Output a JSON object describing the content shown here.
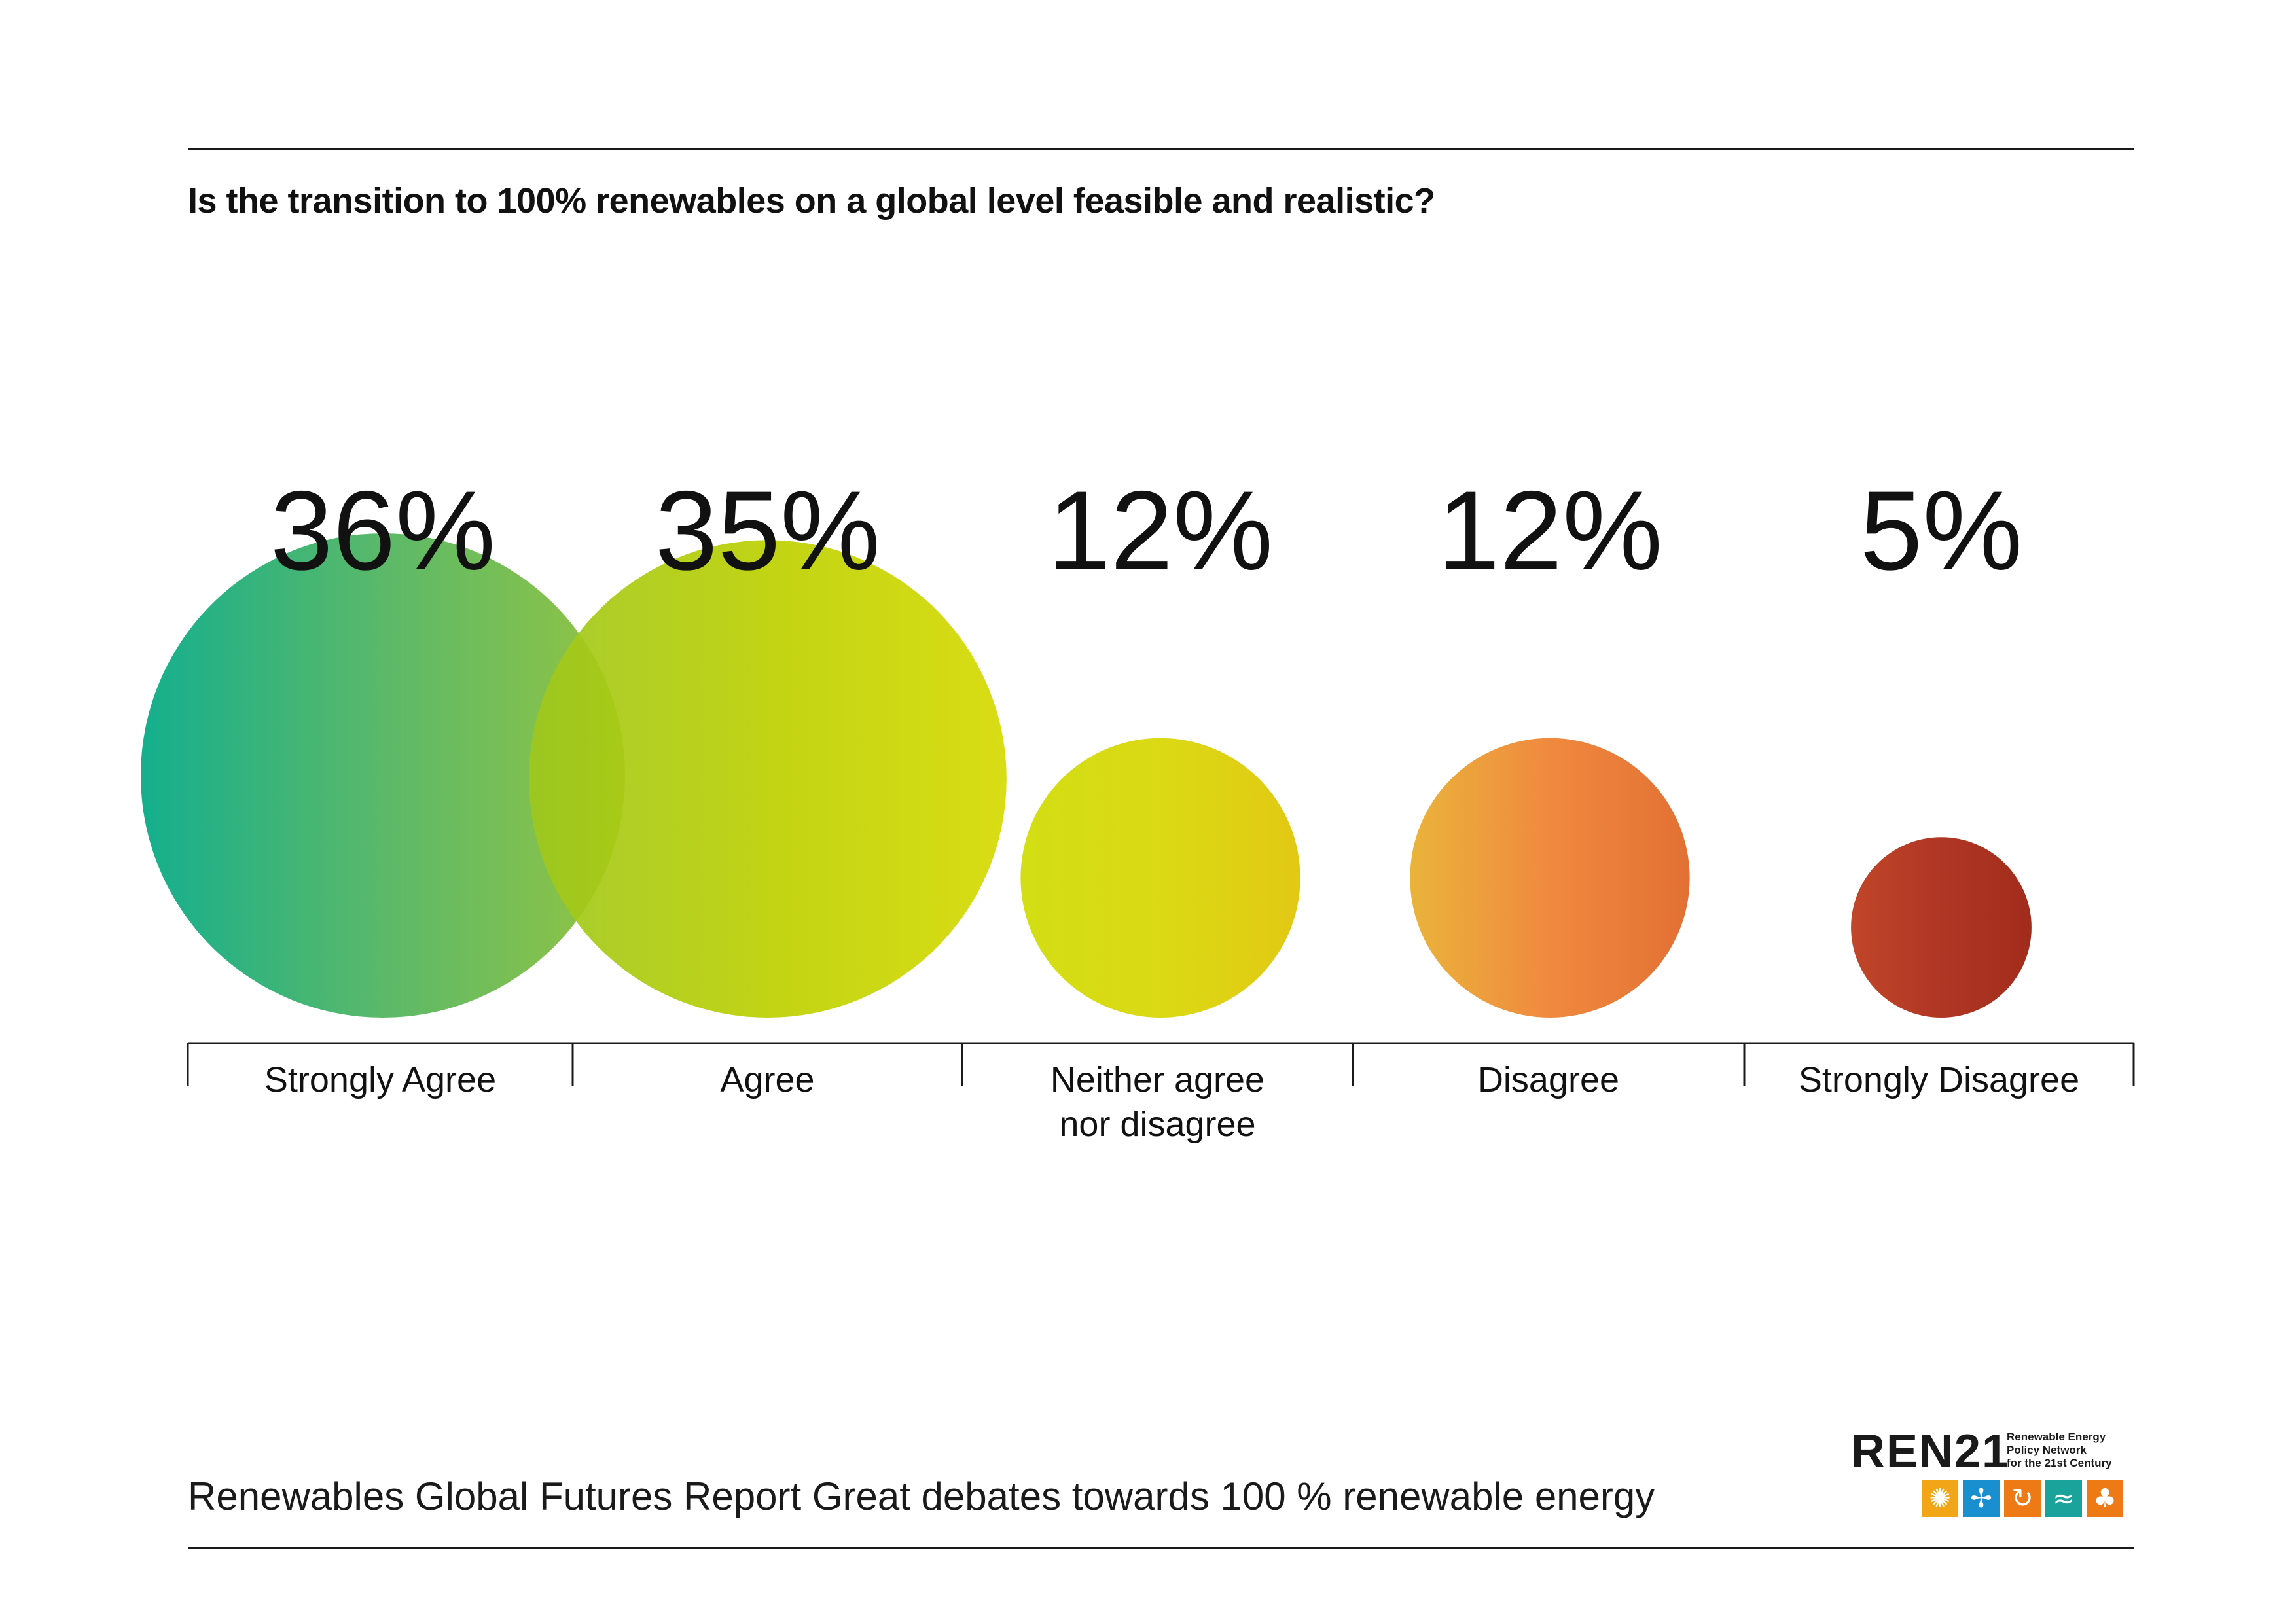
{
  "question": "Is the transition to 100% renewables on a global level feasible and realistic?",
  "chart_data": {
    "type": "bubble",
    "title": "Is the transition to 100% renewables on a global level feasible and realistic?",
    "categories": [
      "Strongly Agree",
      "Agree",
      "Neither agree nor disagree",
      "Disagree",
      "Strongly Disagree"
    ],
    "category_lines": [
      [
        "Strongly Agree"
      ],
      [
        "Agree"
      ],
      [
        "Neither agree",
        "nor disagree"
      ],
      [
        "Disagree"
      ],
      [
        "Strongly Disagree"
      ]
    ],
    "values": [
      36,
      35,
      12,
      12,
      5
    ],
    "value_labels": [
      "36%",
      "35%",
      "12%",
      "12%",
      "5%"
    ],
    "unit": "%",
    "colors": [
      [
        "#00a884",
        "#4db35c",
        "#8bbf32"
      ],
      [
        "#9ec71e",
        "#bcd000",
        "#d6da00"
      ],
      [
        "#cfdb00",
        "#d8d600",
        "#e0c400"
      ],
      [
        "#e8ad2a",
        "#ef7f2e",
        "#e06423"
      ],
      [
        "#bb3617",
        "#a92512",
        "#9a1a08"
      ]
    ]
  },
  "footer": {
    "report_title": "Renewables Global Futures Report Great debates towards 100 % renewable energy"
  },
  "logo": {
    "wordmark": "REN21",
    "tagline_lines": [
      "Renewable Energy",
      "Policy Network",
      "for the 21st Century"
    ],
    "icons": [
      {
        "name": "sun-icon",
        "glyph": "✺",
        "color": "#f2a516"
      },
      {
        "name": "wind-icon",
        "glyph": "✢",
        "color": "#1a8fd0"
      },
      {
        "name": "biomass-icon",
        "glyph": "↻",
        "color": "#ee7a16"
      },
      {
        "name": "water-icon",
        "glyph": "≈",
        "color": "#1aa39a"
      },
      {
        "name": "geothermal-icon",
        "glyph": "♣",
        "color": "#ee7a16"
      }
    ]
  }
}
